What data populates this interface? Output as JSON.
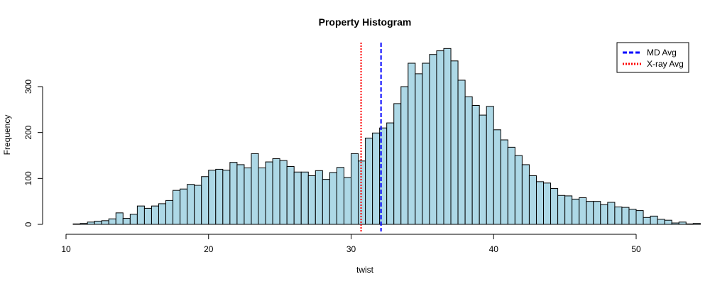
{
  "chart_data": {
    "type": "bar",
    "title": "Property Histogram",
    "xlabel": "twist",
    "ylabel": "Frequency",
    "xlim": [
      10,
      52
    ],
    "ylim": [
      0,
      385
    ],
    "xticks": [
      10,
      20,
      30,
      40,
      50
    ],
    "yticks": [
      0,
      100,
      200,
      300
    ],
    "bin_width": 0.5,
    "bin_start": 10.5,
    "values": [
      1,
      2,
      5,
      7,
      8,
      12,
      25,
      13,
      22,
      40,
      35,
      40,
      45,
      52,
      74,
      77,
      87,
      85,
      104,
      118,
      120,
      118,
      135,
      130,
      123,
      154,
      123,
      136,
      143,
      139,
      126,
      114,
      114,
      106,
      117,
      98,
      113,
      124,
      102,
      154,
      138,
      188,
      199,
      210,
      221,
      263,
      300,
      351,
      328,
      351,
      370,
      378,
      383,
      356,
      314,
      278,
      259,
      238,
      257,
      206,
      184,
      168,
      150,
      130,
      106,
      93,
      90,
      78,
      63,
      62,
      55,
      58,
      50,
      50,
      43,
      48,
      38,
      37,
      33,
      30,
      15,
      18,
      11,
      9,
      3,
      5,
      1,
      2
    ],
    "fill_color": "#add8e6",
    "lines": [
      {
        "name": "MD Avg",
        "x": 32.1,
        "color": "#0000ff",
        "style": "dashed"
      },
      {
        "name": "X-ray Avg",
        "x": 30.7,
        "color": "#ff0000",
        "style": "dotted"
      }
    ],
    "legend": {
      "position": "top-right",
      "entries": [
        "MD Avg",
        "X-ray Avg"
      ]
    }
  }
}
